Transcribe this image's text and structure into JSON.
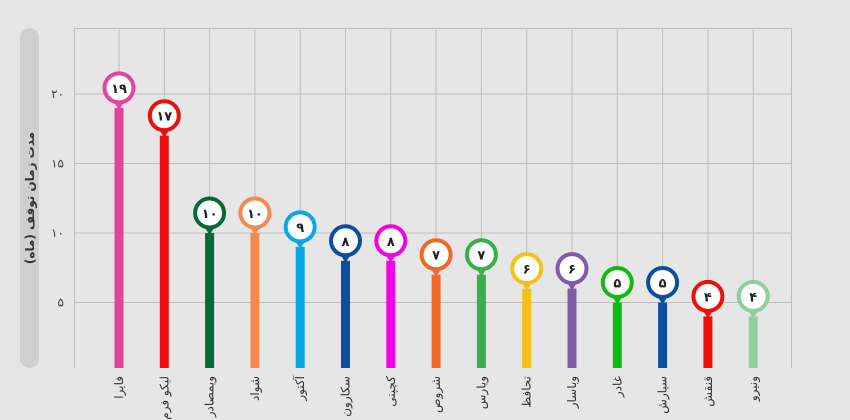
{
  "chart_data": {
    "type": "lollipop",
    "ylabel": "مدت زمان توقف (ماه)",
    "ylim": [
      0,
      25
    ],
    "yticks": [
      "۵",
      "۱۰",
      "۱۵",
      "۲۰"
    ],
    "ytick_values": [
      5,
      10,
      15,
      20
    ],
    "categories": [
      "فایرا",
      "لیکو فرم",
      "ویمصادر",
      "شواد",
      "آکتور",
      "سکارون",
      "کچپنی",
      "شروص",
      "ویارس",
      "تحافظ",
      "وباسار",
      "غادر",
      "سیارش",
      "قنقش",
      "ونیرو"
    ],
    "values": [
      19,
      17,
      10,
      10,
      9,
      8,
      8,
      7,
      7,
      6,
      6,
      5,
      5,
      4,
      4
    ],
    "value_labels": [
      "۱۹",
      "۱۷",
      "۱۰",
      "۱۰",
      "۹",
      "۸",
      "۸",
      "۷",
      "۷",
      "۶",
      "۶",
      "۵",
      "۵",
      "۴",
      "۴"
    ],
    "colors": [
      "#e0449b",
      "#ee0e0e",
      "#066a37",
      "#f58a4f",
      "#0aa8e2",
      "#0b4f9e",
      "#f004e6",
      "#f06a27",
      "#3aad4d",
      "#f2c21a",
      "#7f5ca6",
      "#0fbb0f",
      "#0b4f9e",
      "#ee0e0e",
      "#8fcf9c"
    ],
    "grid": true
  }
}
